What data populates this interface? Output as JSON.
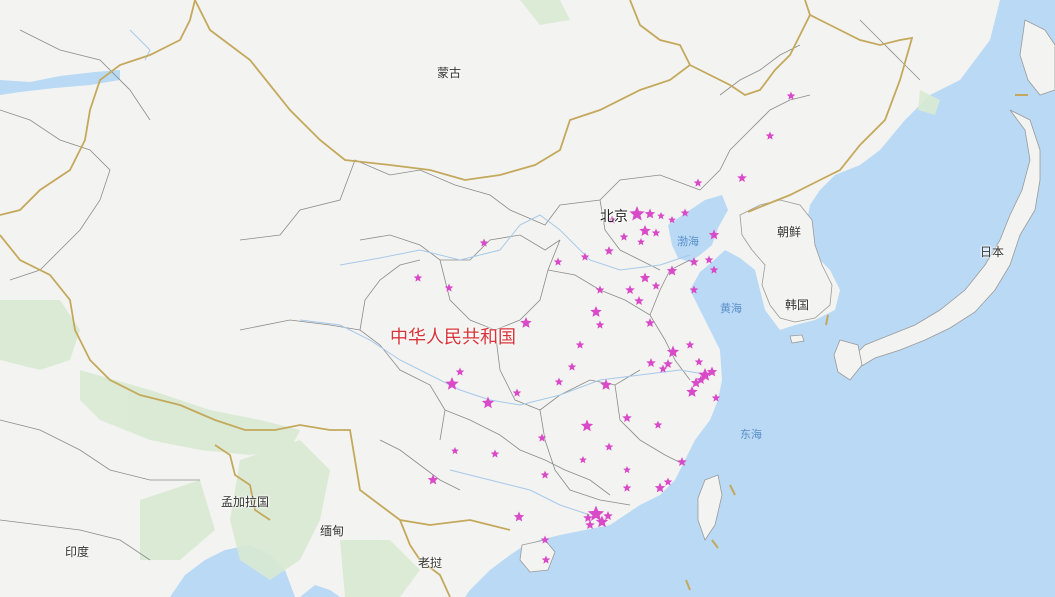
{
  "map": {
    "country_label": "中华人民共和国",
    "capital_label": "北京",
    "places": {
      "mongolia": "蒙古",
      "korea_north": "朝鲜",
      "korea_south": "韩国",
      "japan": "日本",
      "bangladesh": "孟加拉国",
      "myanmar": "缅甸",
      "india": "印度",
      "laos": "老挝"
    },
    "seas": {
      "bohai": "渤海",
      "yellow_sea": "黄海",
      "east_china_sea": "东海"
    },
    "marker_color": "#d94ac8",
    "land_color": "#f3f3f1",
    "water_color": "#b9d9f5",
    "border_color": "#c4a95c"
  }
}
